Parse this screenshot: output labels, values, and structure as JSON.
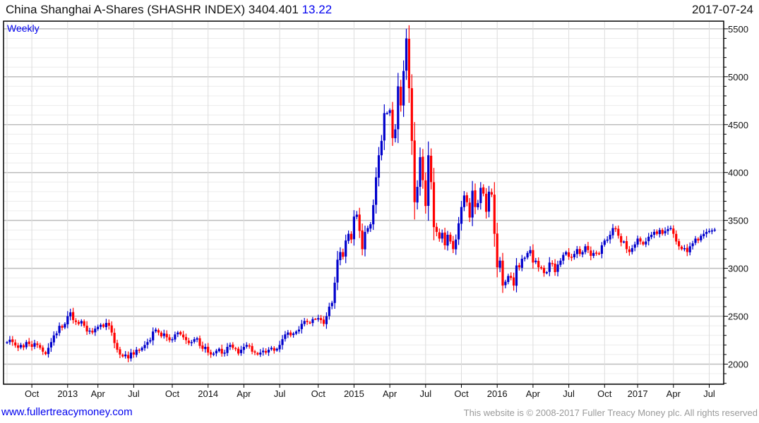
{
  "header": {
    "title": "China Shanghai A-Shares (SHASHR INDEX) 3404.401",
    "change": "13.22",
    "date": "2017-07-24"
  },
  "footer": {
    "link": "www.fullertreacymoney.com",
    "copyright": "This website is © 2008-2017 Fuller Treacy Money plc. All rights reserved"
  },
  "chart_data": {
    "type": "candlestick",
    "period_label": "Weekly",
    "title": "China Shanghai A-Shares (SHASHR INDEX)",
    "ylim": [
      1790,
      5580
    ],
    "yticks": [
      2000,
      2500,
      3000,
      3500,
      4000,
      4500,
      5000,
      5500
    ],
    "grid": true,
    "colors": {
      "up": "#0000cc",
      "down": "#ff0000"
    },
    "xticks": [
      {
        "label": "Oct",
        "week": 9
      },
      {
        "label": "2013",
        "week": 22
      },
      {
        "label": "Apr",
        "week": 33
      },
      {
        "label": "Jul",
        "week": 46
      },
      {
        "label": "Oct",
        "week": 60
      },
      {
        "label": "2014",
        "week": 73
      },
      {
        "label": "Apr",
        "week": 86
      },
      {
        "label": "Jul",
        "week": 99
      },
      {
        "label": "Oct",
        "week": 113
      },
      {
        "label": "2015",
        "week": 126
      },
      {
        "label": "Apr",
        "week": 139
      },
      {
        "label": "Jul",
        "week": 152
      },
      {
        "label": "Oct",
        "week": 165
      },
      {
        "label": "2016",
        "week": 178
      },
      {
        "label": "Apr",
        "week": 191
      },
      {
        "label": "Jul",
        "week": 204
      },
      {
        "label": "Oct",
        "week": 217
      },
      {
        "label": "2017",
        "week": 229
      },
      {
        "label": "Apr",
        "week": 242
      },
      {
        "label": "Jul",
        "week": 255
      }
    ],
    "weekly_close": [
      2230,
      2255,
      2230,
      2195,
      2170,
      2200,
      2175,
      2230,
      2210,
      2180,
      2220,
      2200,
      2170,
      2130,
      2105,
      2170,
      2230,
      2300,
      2320,
      2400,
      2380,
      2420,
      2500,
      2540,
      2460,
      2440,
      2420,
      2450,
      2400,
      2340,
      2350,
      2330,
      2370,
      2390,
      2410,
      2390,
      2430,
      2400,
      2330,
      2220,
      2150,
      2100,
      2080,
      2100,
      2060,
      2120,
      2100,
      2150,
      2140,
      2170,
      2200,
      2230,
      2250,
      2340,
      2360,
      2330,
      2290,
      2320,
      2280,
      2250,
      2260,
      2310,
      2330,
      2310,
      2280,
      2250,
      2220,
      2230,
      2260,
      2270,
      2190,
      2160,
      2180,
      2120,
      2100,
      2110,
      2140,
      2160,
      2110,
      2120,
      2180,
      2200,
      2170,
      2160,
      2110,
      2150,
      2180,
      2200,
      2190,
      2130,
      2120,
      2100,
      2120,
      2140,
      2120,
      2150,
      2170,
      2140,
      2160,
      2200,
      2260,
      2310,
      2330,
      2300,
      2320,
      2340,
      2360,
      2420,
      2450,
      2440,
      2430,
      2470,
      2470,
      2480,
      2460,
      2420,
      2500,
      2600,
      2640,
      2850,
      3090,
      3170,
      3120,
      3290,
      3360,
      3300,
      3540,
      3560,
      3390,
      3200,
      3380,
      3420,
      3460,
      3660,
      3950,
      4180,
      4330,
      4620,
      4620,
      4650,
      4360,
      4450,
      4900,
      4700,
      5060,
      5400,
      4880,
      4330,
      3690,
      3850,
      4160,
      3920,
      3650,
      4180,
      3900,
      3430,
      3380,
      3310,
      3370,
      3240,
      3350,
      3280,
      3200,
      3300,
      3470,
      3640,
      3760,
      3690,
      3530,
      3810,
      3640,
      3680,
      3840,
      3780,
      3590,
      3800,
      3770,
      3360,
      3010,
      3080,
      2820,
      2860,
      2920,
      2900,
      2820,
      3030,
      3010,
      3100,
      3110,
      3160,
      3190,
      3060,
      3080,
      3010,
      3000,
      2950,
      2960,
      3060,
      3050,
      2960,
      3040,
      3080,
      3140,
      3170,
      3120,
      3110,
      3150,
      3200,
      3150,
      3170,
      3230,
      3190,
      3130,
      3160,
      3160,
      3150,
      3240,
      3290,
      3300,
      3350,
      3420,
      3410,
      3340,
      3270,
      3280,
      3200,
      3170,
      3210,
      3250,
      3310,
      3280,
      3250,
      3280,
      3330,
      3350,
      3380,
      3360,
      3400,
      3360,
      3390,
      3410,
      3420,
      3360,
      3280,
      3230,
      3200,
      3210,
      3170,
      3230,
      3260,
      3310,
      3290,
      3340,
      3360,
      3380,
      3390,
      3395,
      3404
    ]
  }
}
